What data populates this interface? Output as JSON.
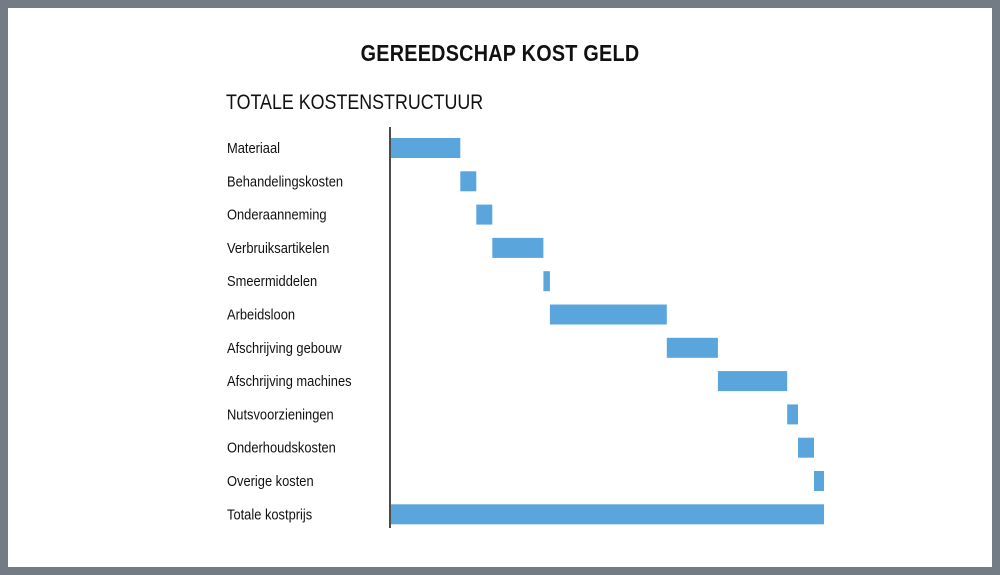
{
  "chart_data": {
    "type": "bar",
    "subtype": "waterfall-horizontal",
    "title": "GEREEDSCHAP KOST GELD",
    "subtitle": "TOTALE KOSTENSTRUCTUUR",
    "categories": [
      "Materiaal",
      "Behandelingskosten",
      "Onderaanneming",
      "Verbruiksartikelen",
      "Smeermiddelen",
      "Arbeidsloon",
      "Afschrijving gebouw",
      "Afschrijving machines",
      "Nutsvoorzieningen",
      "Onderhoudskosten",
      "Overige kosten",
      "Totale kostprijs"
    ],
    "values": [
      16,
      3.7,
      3.7,
      11.8,
      1.5,
      27,
      11.8,
      16,
      2.5,
      3.7,
      2.3,
      100
    ],
    "total_index": 11,
    "xlim": [
      0,
      100
    ],
    "axis_visible": false,
    "grid": false,
    "legend": "none",
    "bar_color": "#5aa6dc"
  }
}
